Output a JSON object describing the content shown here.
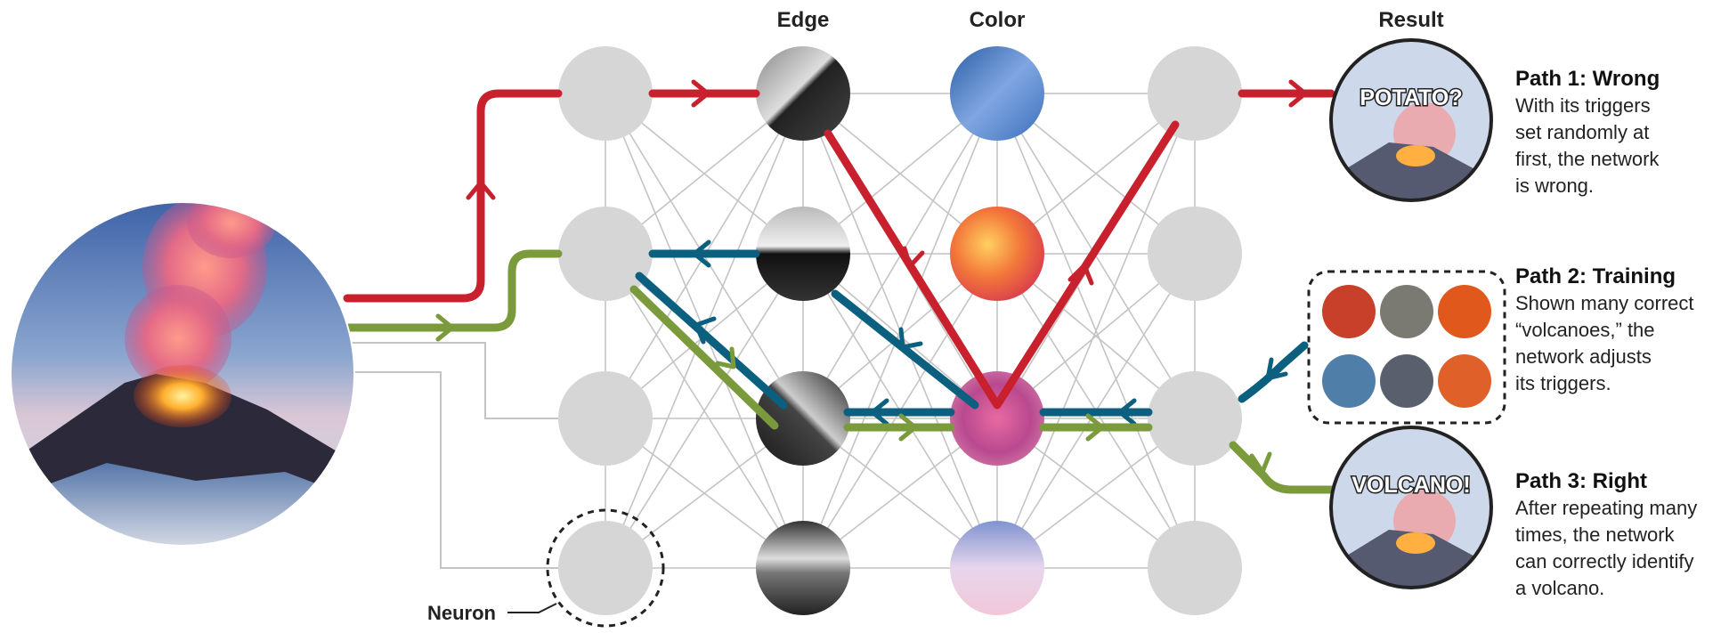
{
  "headers": {
    "edge": "Edge",
    "color": "Color",
    "result": "Result"
  },
  "results": {
    "wrong": "POTATO?",
    "right": "VOLCANO!"
  },
  "neuron_label": "Neuron",
  "paths": [
    {
      "title": "Path 1: Wrong",
      "lines": [
        "With its triggers",
        "set randomly at",
        "first, the network",
        "is wrong."
      ]
    },
    {
      "title": "Path 2: Training",
      "lines": [
        "Shown many correct",
        "“volcanoes,” the",
        "network adjusts",
        "its triggers."
      ]
    },
    {
      "title": "Path 3: Right",
      "lines": [
        "After repeating many",
        "times, the network",
        "can correctly identify",
        "a volcano."
      ]
    }
  ],
  "colors": {
    "wrong_path": "#c8202c",
    "training_path": "#0b5f7f",
    "right_path": "#7a9a3c",
    "neuron_gray": "#d6d6d6",
    "connection_gray": "#c4c4c4"
  },
  "icons": {
    "input_image": "volcano-photo",
    "edge_features": "grayscale-edge-patches",
    "color_features": "color-patches",
    "training_examples": "volcano-thumbnails"
  }
}
